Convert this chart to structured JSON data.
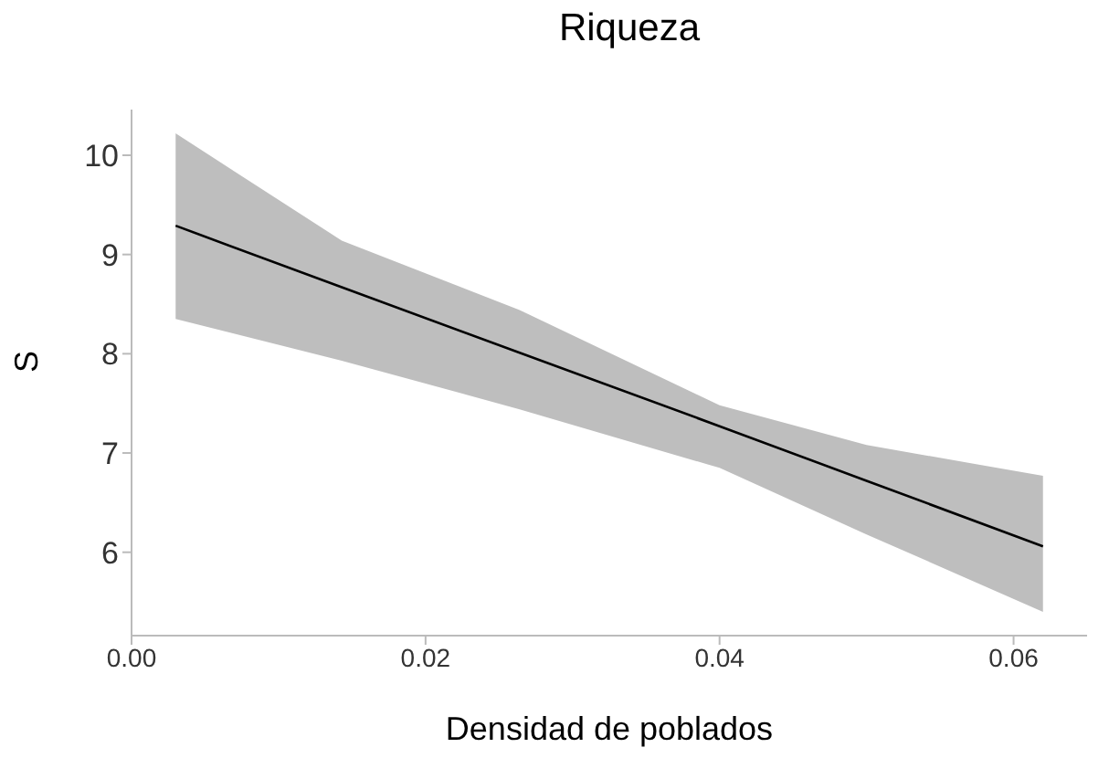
{
  "chart_data": {
    "type": "line",
    "title": "Riqueza",
    "xlabel": "Densidad de poblados",
    "ylabel": "S",
    "xlim": [
      0,
      0.065
    ],
    "ylim": [
      5.16,
      10.46
    ],
    "xticks": [
      {
        "value": 0,
        "label": "0.00"
      },
      {
        "value": 0.02,
        "label": "0.02"
      },
      {
        "value": 0.04,
        "label": "0.04"
      },
      {
        "value": 0.06,
        "label": "0.06"
      }
    ],
    "yticks": [
      6,
      7,
      8,
      9,
      10
    ],
    "grid": false,
    "legend": false,
    "marker": "none",
    "line_style": "solid",
    "series": [
      {
        "color": "#000000",
        "x": [
          0.003,
          0.0143,
          0.0264,
          0.04,
          0.05,
          0.062
        ],
        "values": [
          9.29,
          8.67,
          8.01,
          7.27,
          6.72,
          6.06
        ],
        "lower": [
          8.35,
          7.93,
          7.44,
          6.85,
          6.18,
          5.4
        ],
        "upper": [
          10.22,
          9.14,
          8.44,
          7.48,
          7.08,
          6.77
        ]
      }
    ]
  }
}
